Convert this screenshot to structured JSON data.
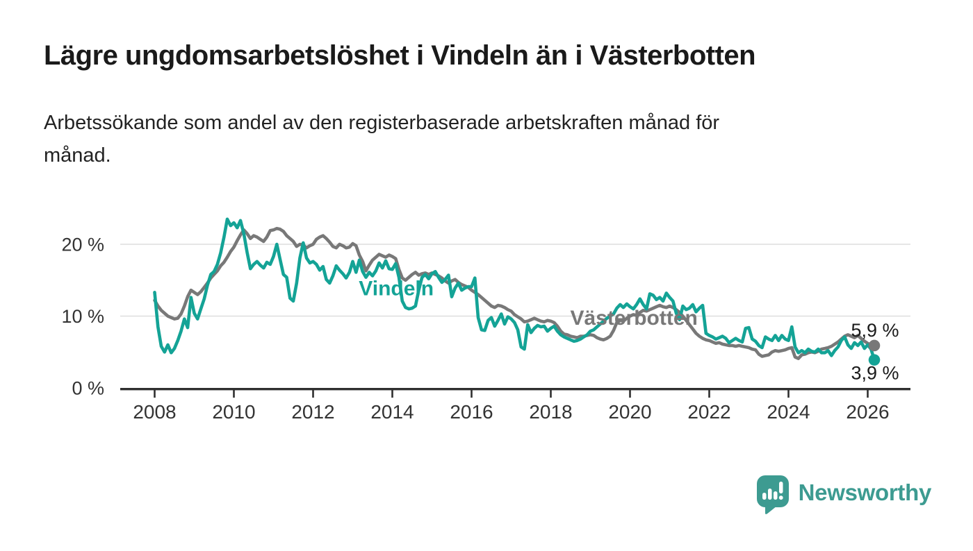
{
  "header": {
    "title": "Lägre ungdomsarbetslöshet i Vindeln än i Västerbotten",
    "subtitle_lines": {
      "0": "Arbetssökande som andel av den registerbaserade arbetskraften månad för",
      "1": "månad."
    }
  },
  "branding": {
    "logo_text": "Newsworthy",
    "logo_icon": "speech-bubble-bar-chart",
    "color": "#3d9b91"
  },
  "colors": {
    "vindeln": "#14a396",
    "vasterbotten": "#787878",
    "grid": "#dedede",
    "axis": "#2f2f2f",
    "tick_text": "#333333",
    "value_text": "#1a1a1a"
  },
  "chart_data": {
    "type": "line",
    "title": "Lägre ungdomsarbetslöshet i Vindeln än i Västerbotten",
    "xlabel": "",
    "ylabel": "Arbetssökande som andel av den registerbaserade arbetskraften",
    "x_unit": "month",
    "x_start_year": 2008,
    "x_start_month": 1,
    "x_end_year": 2026,
    "x_end_month": 3,
    "x_tick_labels": [
      "2008",
      "2010",
      "2012",
      "2014",
      "2016",
      "2018",
      "2020",
      "2022",
      "2024",
      "2026"
    ],
    "y_ticks": [
      {
        "value": 0,
        "label": "0 %"
      },
      {
        "value": 10,
        "label": "10 %"
      },
      {
        "value": 20,
        "label": "20 %"
      }
    ],
    "ylim": [
      0,
      25
    ],
    "grid": "horizontal-only",
    "legend_position": "inline-labels",
    "series": [
      {
        "name": "Västerbotten",
        "key": "vasterbotten",
        "color": "#787878",
        "inline_label": {
          "text": "Västerbotten",
          "x": 2020.1,
          "y": 8.8
        },
        "end_label": "5,9 %",
        "end_value": 5.9,
        "end_label_position": "above",
        "values": [
          12.2,
          11.4,
          10.8,
          10.4,
          10.0,
          9.8,
          9.6,
          9.7,
          10.3,
          11.4,
          12.7,
          13.6,
          13.3,
          13.0,
          13.4,
          14.0,
          14.6,
          15.3,
          15.8,
          16.3,
          17.0,
          17.5,
          18.2,
          19.0,
          19.6,
          20.5,
          21.3,
          22.0,
          21.5,
          20.8,
          21.2,
          21.0,
          20.7,
          20.4,
          21.0,
          21.9,
          22.0,
          22.2,
          22.1,
          21.8,
          21.2,
          20.8,
          20.4,
          19.7,
          20.0,
          19.9,
          19.5,
          19.8,
          20.0,
          20.7,
          21.0,
          21.2,
          20.8,
          20.3,
          19.7,
          19.5,
          20.0,
          19.8,
          19.5,
          19.6,
          20.1,
          19.8,
          18.5,
          17.6,
          16.3,
          17.1,
          17.8,
          18.2,
          18.6,
          18.4,
          18.2,
          18.5,
          18.3,
          18.0,
          16.5,
          15.3,
          15.0,
          15.4,
          15.8,
          16.1,
          15.7,
          15.9,
          16.0,
          15.8,
          16.0,
          15.8,
          15.6,
          15.3,
          14.9,
          14.6,
          14.9,
          15.1,
          14.7,
          14.4,
          14.2,
          14.0,
          13.6,
          13.3,
          13.0,
          12.6,
          12.2,
          11.8,
          11.4,
          11.2,
          11.5,
          11.4,
          11.2,
          10.9,
          10.7,
          10.2,
          9.9,
          9.6,
          9.2,
          9.3,
          9.5,
          9.7,
          9.5,
          9.3,
          9.2,
          9.4,
          9.3,
          9.1,
          8.6,
          7.9,
          7.5,
          7.4,
          7.2,
          7.1,
          7.0,
          7.2,
          7.2,
          7.3,
          7.4,
          7.3,
          7.0,
          6.8,
          6.7,
          6.9,
          7.2,
          8.0,
          9.1,
          9.4,
          9.3,
          9.7,
          10.0,
          10.2,
          10.1,
          10.5,
          10.8,
          10.7,
          10.9,
          11.1,
          11.3,
          11.5,
          11.3,
          11.2,
          11.4,
          11.2,
          10.9,
          10.5,
          10.0,
          9.4,
          8.8,
          8.2,
          7.6,
          7.2,
          6.9,
          6.7,
          6.6,
          6.4,
          6.2,
          6.3,
          6.1,
          6.0,
          5.9,
          5.9,
          5.8,
          5.9,
          5.8,
          5.7,
          5.6,
          5.4,
          5.3,
          4.7,
          4.4,
          4.5,
          4.6,
          5.0,
          5.2,
          5.1,
          5.2,
          5.3,
          5.5,
          5.6,
          4.3,
          4.1,
          4.6,
          4.7,
          4.9,
          5.0,
          4.9,
          5.1,
          5.4,
          5.5,
          5.6,
          5.8,
          6.1,
          6.4,
          6.8,
          7.2,
          7.4,
          7.2,
          7.0,
          7.3,
          6.9,
          6.5,
          6.2,
          6.0,
          5.9
        ]
      },
      {
        "name": "Vindeln",
        "key": "vindeln",
        "color": "#14a396",
        "inline_label": {
          "text": "Vindeln",
          "x": 2014.1,
          "y": 12.9
        },
        "end_label": "3,9 %",
        "end_value": 3.9,
        "end_label_position": "below",
        "values": [
          13.3,
          8.5,
          5.8,
          5.0,
          6.0,
          4.9,
          5.5,
          6.6,
          7.9,
          9.6,
          8.4,
          12.6,
          10.4,
          9.6,
          11.0,
          12.4,
          14.3,
          15.8,
          16.2,
          17.2,
          18.8,
          21.0,
          23.5,
          22.6,
          23.0,
          22.3,
          23.3,
          21.5,
          18.9,
          16.6,
          17.2,
          17.6,
          17.1,
          16.7,
          17.5,
          17.2,
          18.3,
          20.0,
          17.9,
          15.8,
          15.4,
          12.5,
          12.1,
          14.6,
          18.1,
          20.2,
          18.1,
          17.4,
          17.6,
          17.2,
          16.4,
          16.9,
          15.1,
          14.6,
          15.6,
          17.0,
          16.4,
          15.9,
          15.3,
          16.1,
          17.6,
          16.1,
          17.8,
          16.2,
          15.4,
          16.1,
          15.6,
          16.3,
          17.4,
          16.7,
          17.7,
          16.6,
          16.5,
          17.3,
          15.4,
          12.1,
          11.2,
          11.0,
          11.1,
          11.4,
          13.6,
          15.4,
          15.8,
          15.2,
          15.9,
          16.2,
          15.4,
          14.7,
          15.1,
          15.7,
          12.7,
          13.9,
          14.6,
          13.6,
          13.9,
          14.1,
          14.1,
          15.3,
          9.8,
          8.1,
          8.0,
          9.4,
          9.8,
          8.6,
          9.4,
          10.3,
          8.9,
          9.9,
          9.6,
          9.1,
          8.1,
          5.7,
          5.4,
          8.8,
          7.7,
          8.3,
          8.7,
          8.5,
          8.6,
          7.9,
          8.3,
          8.6,
          7.9,
          7.4,
          7.1,
          6.9,
          6.7,
          6.5,
          6.6,
          6.8,
          7.1,
          7.4,
          7.9,
          8.1,
          8.5,
          8.9,
          9.3,
          9.7,
          10.0,
          10.3,
          11.1,
          11.6,
          11.2,
          11.7,
          11.3,
          11.0,
          11.6,
          12.4,
          11.6,
          11.0,
          13.1,
          12.9,
          12.3,
          12.6,
          12.1,
          13.2,
          12.6,
          12.1,
          10.4,
          9.5,
          11.4,
          10.9,
          11.1,
          11.6,
          10.6,
          11.1,
          11.5,
          7.6,
          7.3,
          7.1,
          6.8,
          7.0,
          7.2,
          6.9,
          6.3,
          6.6,
          6.9,
          6.6,
          6.4,
          8.3,
          8.4,
          6.8,
          6.5,
          5.9,
          5.6,
          7.1,
          6.8,
          6.6,
          7.3,
          6.6,
          7.3,
          6.8,
          6.6,
          8.5,
          5.7,
          4.9,
          5.2,
          4.9,
          5.4,
          5.1,
          5.0,
          5.4,
          4.9,
          4.9,
          5.2,
          4.5,
          5.2,
          5.7,
          6.6,
          7.1,
          6.0,
          5.5,
          6.3,
          5.9,
          6.4,
          5.5,
          6.0,
          5.4,
          3.9
        ]
      }
    ]
  }
}
